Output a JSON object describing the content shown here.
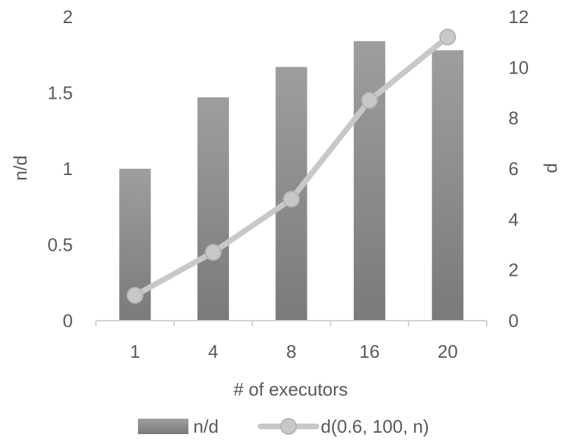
{
  "chart_data": {
    "type": "bar",
    "categories": [
      "1",
      "4",
      "8",
      "16",
      "20"
    ],
    "xlabel": "# of executors",
    "series": [
      {
        "name": "n/d",
        "type": "bar",
        "axis": "left",
        "values": [
          1.0,
          1.47,
          1.67,
          1.84,
          1.78
        ]
      },
      {
        "name": "d(0.6, 100, n)",
        "type": "line",
        "axis": "right",
        "values": [
          1.0,
          2.7,
          4.8,
          8.7,
          11.2
        ]
      }
    ],
    "left_axis": {
      "label": "n/d",
      "ylim": [
        0,
        2
      ],
      "ticks": [
        "0",
        "0.5",
        "1",
        "1.5",
        "2"
      ]
    },
    "right_axis": {
      "label": "d",
      "ylim": [
        0,
        12
      ],
      "ticks": [
        "0",
        "2",
        "4",
        "6",
        "8",
        "10",
        "12"
      ]
    },
    "grid": false,
    "legend": "bottom",
    "colors": {
      "bar_top": "#9e9e9e",
      "bar_bottom": "#7a7a7a",
      "line": "#c8c8c8",
      "axis": "#d0d0d0",
      "text": "#595959"
    }
  }
}
